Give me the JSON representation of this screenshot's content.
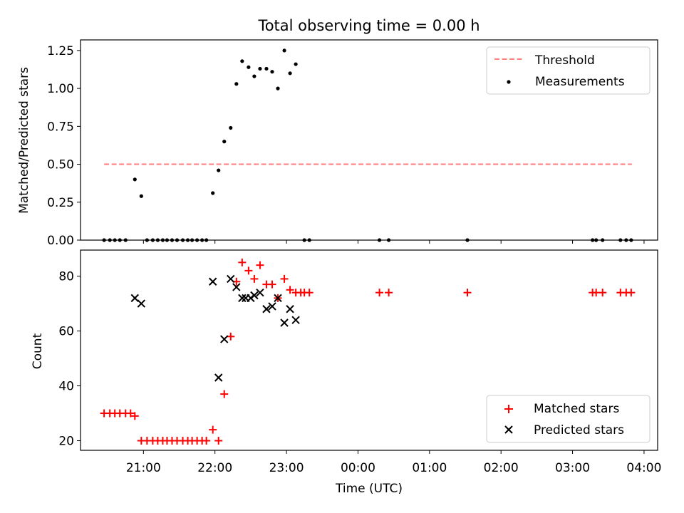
{
  "chart_data": [
    {
      "type": "scatter",
      "title": "Total observing time = 0.00 h",
      "xlabel": "",
      "ylabel": "Matched/Predicted stars",
      "ylim": [
        0,
        1.32
      ],
      "yticks": [
        "0.00",
        "0.25",
        "0.50",
        "0.75",
        "1.00",
        "1.25"
      ],
      "ytick_values": [
        0,
        0.25,
        0.5,
        0.75,
        1.0,
        1.25
      ],
      "xlim_hours": [
        20.12,
        28.19
      ],
      "x_axis_note": "hours UTC, values past 24 are after midnight",
      "legend_position": "upper right",
      "series": [
        {
          "name": "Threshold",
          "style": "dashed-line",
          "color": "#ff7f7f",
          "x": [
            20.45,
            27.83
          ],
          "y": [
            0.5,
            0.5
          ]
        },
        {
          "name": "Measurements",
          "style": "dot",
          "color": "#000000",
          "x": [
            20.45,
            20.53,
            20.6,
            20.67,
            20.75,
            20.88,
            20.97,
            21.05,
            21.13,
            21.2,
            21.27,
            21.33,
            21.4,
            21.47,
            21.55,
            21.62,
            21.68,
            21.75,
            21.82,
            21.88,
            21.97,
            22.05,
            22.13,
            22.22,
            22.3,
            22.38,
            22.47,
            22.55,
            22.63,
            22.72,
            22.8,
            22.88,
            22.97,
            23.05,
            23.13,
            23.25,
            23.32,
            24.3,
            24.43,
            25.53,
            27.28,
            27.33,
            27.42,
            27.67,
            27.75,
            27.82
          ],
          "y": [
            0,
            0,
            0,
            0,
            0,
            0.4,
            0.29,
            0,
            0,
            0,
            0,
            0,
            0,
            0,
            0,
            0,
            0,
            0,
            0,
            0,
            0.31,
            0.46,
            0.65,
            0.74,
            1.03,
            1.18,
            1.14,
            1.08,
            1.13,
            1.13,
            1.11,
            1.0,
            1.25,
            1.1,
            1.16,
            0,
            0,
            0,
            0,
            0,
            0,
            0,
            0,
            0,
            0,
            0
          ]
        }
      ]
    },
    {
      "type": "scatter",
      "xlabel": "Time (UTC)",
      "ylabel": "Count",
      "ylim": [
        16.5,
        89.5
      ],
      "yticks": [
        "20",
        "40",
        "60",
        "80"
      ],
      "ytick_values": [
        20,
        40,
        60,
        80
      ],
      "xlim_hours": [
        20.12,
        28.19
      ],
      "xticks": [
        "21:00",
        "22:00",
        "23:00",
        "00:00",
        "01:00",
        "02:00",
        "03:00",
        "04:00"
      ],
      "xtick_hours": [
        21,
        22,
        23,
        24,
        25,
        26,
        27,
        28
      ],
      "legend_position": "lower right",
      "series": [
        {
          "name": "Matched stars",
          "marker": "plus",
          "color": "#ff0000",
          "x": [
            20.45,
            20.53,
            20.6,
            20.67,
            20.75,
            20.82,
            20.88,
            20.97,
            21.05,
            21.13,
            21.2,
            21.27,
            21.33,
            21.4,
            21.47,
            21.55,
            21.62,
            21.68,
            21.75,
            21.82,
            21.88,
            21.97,
            22.05,
            22.13,
            22.22,
            22.3,
            22.38,
            22.47,
            22.55,
            22.63,
            22.72,
            22.8,
            22.88,
            22.97,
            23.05,
            23.13,
            23.2,
            23.25,
            23.32,
            24.3,
            24.43,
            25.53,
            27.28,
            27.33,
            27.42,
            27.67,
            27.75,
            27.82
          ],
          "y": [
            30,
            30,
            30,
            30,
            30,
            30,
            29,
            20,
            20,
            20,
            20,
            20,
            20,
            20,
            20,
            20,
            20,
            20,
            20,
            20,
            20,
            24,
            20,
            37,
            58,
            78,
            85,
            82,
            79,
            84,
            77,
            77,
            72,
            79,
            75,
            74,
            74,
            74,
            74,
            74,
            74,
            74,
            74,
            74,
            74,
            74,
            74,
            74
          ]
        },
        {
          "name": "Predicted stars",
          "marker": "x",
          "color": "#000000",
          "x": [
            20.88,
            20.97,
            21.97,
            22.05,
            22.13,
            22.22,
            22.3,
            22.38,
            22.43,
            22.5,
            22.55,
            22.63,
            22.72,
            22.8,
            22.88,
            22.97,
            23.05,
            23.13
          ],
          "y": [
            72,
            70,
            78,
            43,
            57,
            79,
            76,
            72,
            72,
            72,
            73,
            74,
            68,
            69,
            72,
            63,
            68,
            64
          ]
        }
      ]
    }
  ]
}
